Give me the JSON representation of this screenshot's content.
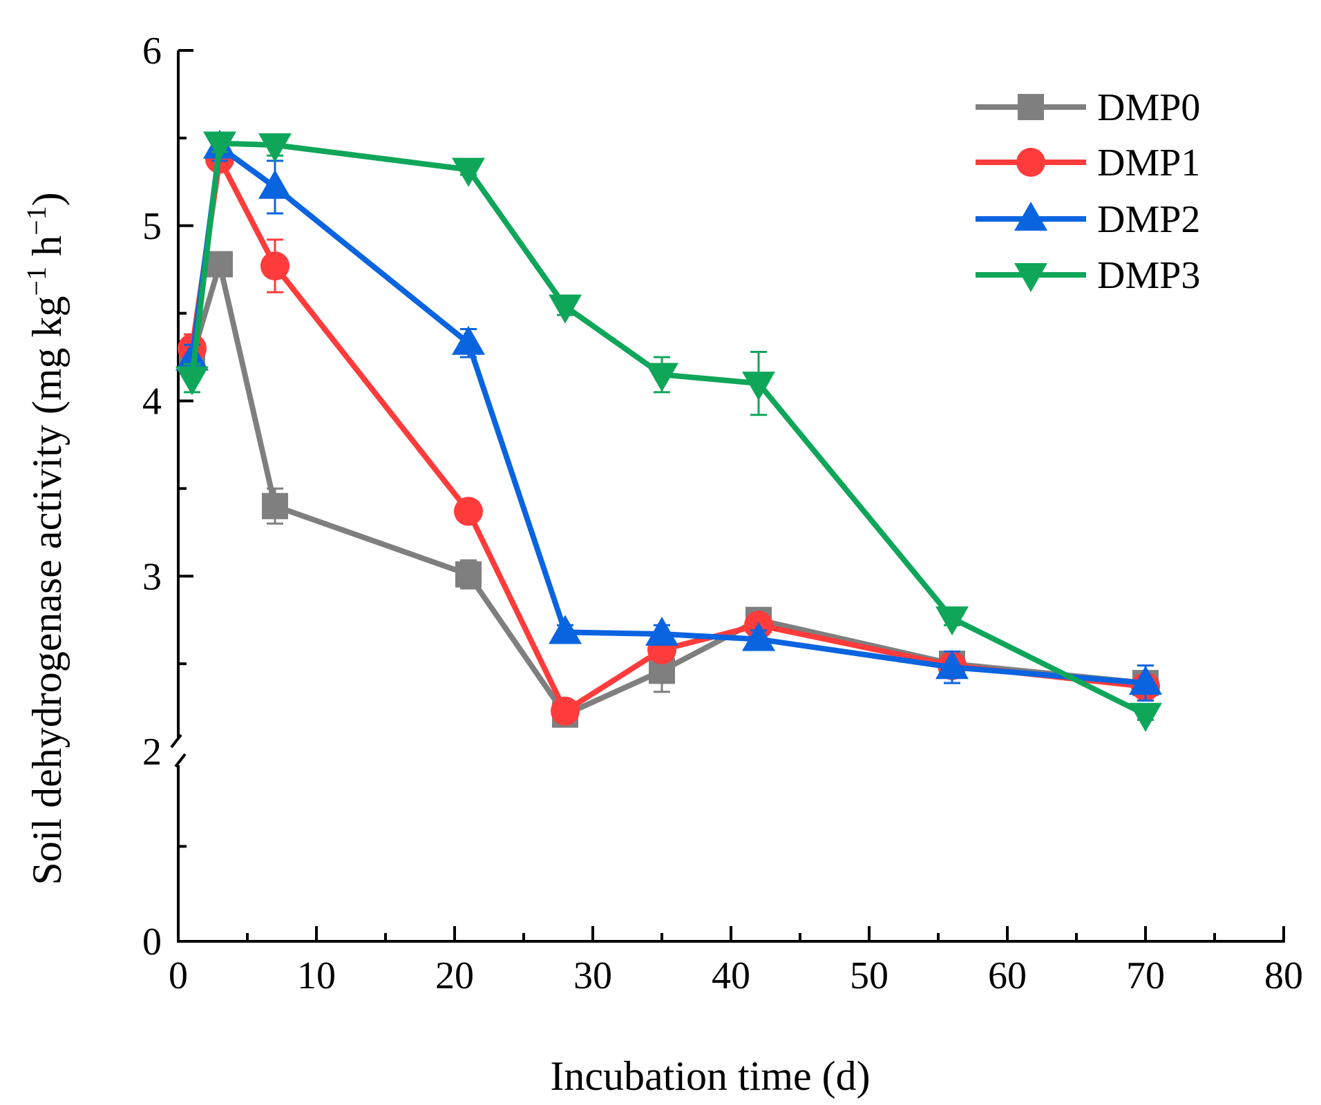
{
  "chart_data": {
    "type": "line",
    "title": "",
    "xlabel": "Incubation time (d)",
    "ylabel": "Soil dehydrogenase activity (mg kg⁻¹ h⁻¹)",
    "ylabel_parts": {
      "base": "Soil dehydrogenase activity (mg kg",
      "sup1": "−1",
      "mid": " h",
      "sup2": "−1",
      "end": ")"
    },
    "xlim": [
      0,
      80
    ],
    "x_ticks": [
      0,
      10,
      20,
      30,
      40,
      50,
      60,
      70,
      80
    ],
    "x_tick_labels": [
      "0",
      "10",
      "20",
      "30",
      "40",
      "50",
      "60",
      "70",
      "80"
    ],
    "y_broken_axis": {
      "lower_range": [
        0,
        2
      ],
      "upper_range": [
        2,
        6
      ],
      "break_at": 2
    },
    "y_ticks": [
      0,
      2,
      3,
      4,
      5,
      6
    ],
    "y_tick_labels": [
      "0",
      "2",
      "3",
      "4",
      "5",
      "6"
    ],
    "y_minor_ticks": [
      1
    ],
    "grid": false,
    "legend_position": "top-right",
    "x": [
      1,
      3,
      7,
      21,
      28,
      35,
      42,
      56,
      70
    ],
    "series": [
      {
        "name": "DMP0",
        "color": "#7f7f7f",
        "marker": "square",
        "values": [
          4.25,
          4.78,
          3.4,
          3.01,
          2.21,
          2.46,
          2.75,
          2.5,
          2.39
        ],
        "errors": [
          0.05,
          0.05,
          0.1,
          0.08,
          0.05,
          0.12,
          0.05,
          0.05,
          0.05
        ]
      },
      {
        "name": "DMP1",
        "color": "#ff3b3b",
        "marker": "circle",
        "values": [
          4.3,
          5.38,
          4.77,
          3.37,
          2.23,
          2.58,
          2.72,
          2.49,
          2.37
        ],
        "errors": [
          0.08,
          0.05,
          0.15,
          0.05,
          0.05,
          0.06,
          0.05,
          0.05,
          0.05
        ]
      },
      {
        "name": "DMP2",
        "color": "#0a64e0",
        "marker": "triangle-up",
        "values": [
          4.24,
          5.45,
          5.22,
          4.33,
          2.68,
          2.67,
          2.64,
          2.48,
          2.39
        ],
        "errors": [
          0.08,
          0.08,
          0.15,
          0.08,
          0.04,
          0.05,
          0.05,
          0.09,
          0.1
        ]
      },
      {
        "name": "DMP3",
        "color": "#0fa65a",
        "marker": "triangle-down",
        "values": [
          4.13,
          5.47,
          5.46,
          5.32,
          4.54,
          4.15,
          4.1,
          2.76,
          2.21
        ],
        "errors": [
          0.08,
          0.05,
          0.06,
          0.03,
          0.05,
          0.1,
          0.18,
          0.04,
          0.03
        ]
      }
    ]
  }
}
